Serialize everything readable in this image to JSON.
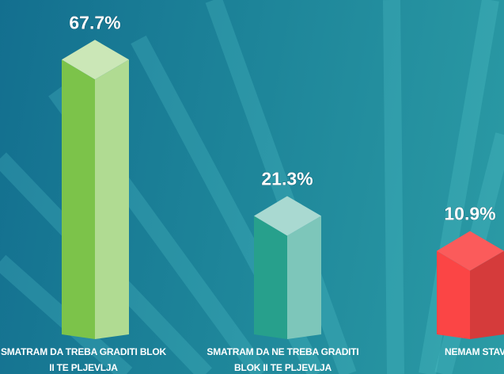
{
  "chart_data": {
    "type": "bar3d",
    "categories": [
      "SMATRAM DA TREBA GRADITI BLOK II TE PLJEVLJA",
      "SMATRAM DA NE TREBA GRADITI BLOK II TE PLJEVLJA",
      "NEMAM STAV"
    ],
    "values": [
      67.7,
      21.3,
      10.9
    ],
    "value_labels": [
      "67.7%",
      "21.3%",
      "10.9%"
    ],
    "colors": [
      "#7cc34a",
      "#27a08c",
      "#fb4545"
    ]
  }
}
